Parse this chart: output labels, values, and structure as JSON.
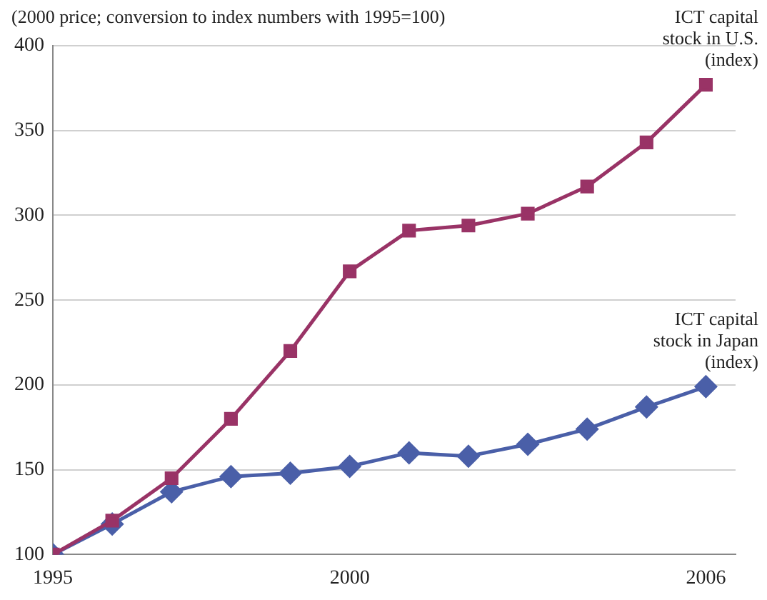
{
  "chart_data": {
    "type": "line",
    "annotations": [
      "(2000 price; conversion to index numbers with 1995=100)"
    ],
    "x": [
      1995,
      1996,
      1997,
      1998,
      1999,
      2000,
      2001,
      2002,
      2003,
      2004,
      2005,
      2006
    ],
    "series": [
      {
        "name": "ICT capital stock in U.S. (index)",
        "color": "#993366",
        "marker": "square",
        "values": [
          100,
          120,
          145,
          180,
          220,
          267,
          291,
          294,
          301,
          317,
          343,
          377
        ]
      },
      {
        "name": "ICT capital stock in Japan (index)",
        "color": "#4a5fa8",
        "marker": "diamond",
        "values": [
          100,
          118,
          137,
          146,
          148,
          152,
          160,
          158,
          165,
          174,
          187,
          199
        ]
      }
    ],
    "xlim": [
      1995,
      2006.5
    ],
    "xticks": [
      1995,
      2000,
      2006
    ],
    "ylim": [
      100,
      400
    ],
    "yticks": [
      100,
      150,
      200,
      250,
      300,
      350,
      400
    ],
    "grid": "y",
    "legend": false,
    "line_style": "solid"
  }
}
